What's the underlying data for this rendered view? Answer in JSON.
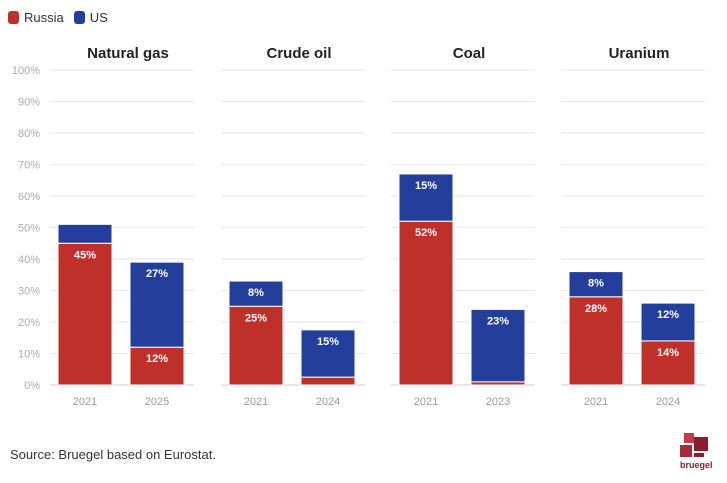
{
  "legend": [
    {
      "name": "Russia",
      "color": "#c0302b"
    },
    {
      "name": "US",
      "color": "#233f9b"
    }
  ],
  "source": "Source: Bruegel based on Eurostat.",
  "logo_text": "bruegel",
  "chart_data": {
    "type": "bar",
    "stacked": true,
    "ylim": [
      0,
      100
    ],
    "yticks": [
      "0%",
      "10%",
      "20%",
      "30%",
      "40%",
      "50%",
      "60%",
      "70%",
      "80%",
      "90%",
      "100%"
    ],
    "grid": true,
    "legend_position": "top-left",
    "series_colors": {
      "Russia": "#c0302b",
      "US": "#233f9b"
    },
    "panels": [
      {
        "title": "Natural gas",
        "categories": [
          "2021",
          "2025"
        ],
        "series": [
          {
            "name": "Russia",
            "values": [
              45,
              12
            ],
            "labels": [
              "45%",
              "12%"
            ]
          },
          {
            "name": "US",
            "values": [
              6,
              27
            ],
            "labels": [
              "",
              "27%"
            ]
          }
        ]
      },
      {
        "title": "Crude oil",
        "categories": [
          "2021",
          "2024"
        ],
        "series": [
          {
            "name": "Russia",
            "values": [
              25,
              2.5
            ],
            "labels": [
              "25%",
              ""
            ]
          },
          {
            "name": "US",
            "values": [
              8,
              15
            ],
            "labels": [
              "8%",
              "15%"
            ]
          }
        ]
      },
      {
        "title": "Coal",
        "categories": [
          "2021",
          "2023"
        ],
        "series": [
          {
            "name": "Russia",
            "values": [
              52,
              1
            ],
            "labels": [
              "52%",
              ""
            ]
          },
          {
            "name": "US",
            "values": [
              15,
              23
            ],
            "labels": [
              "15%",
              "23%"
            ]
          }
        ]
      },
      {
        "title": "Uranium",
        "categories": [
          "2021",
          "2024"
        ],
        "series": [
          {
            "name": "Russia",
            "values": [
              28,
              14
            ],
            "labels": [
              "28%",
              "14%"
            ]
          },
          {
            "name": "US",
            "values": [
              8,
              12
            ],
            "labels": [
              "8%",
              "12%"
            ]
          }
        ]
      }
    ]
  }
}
